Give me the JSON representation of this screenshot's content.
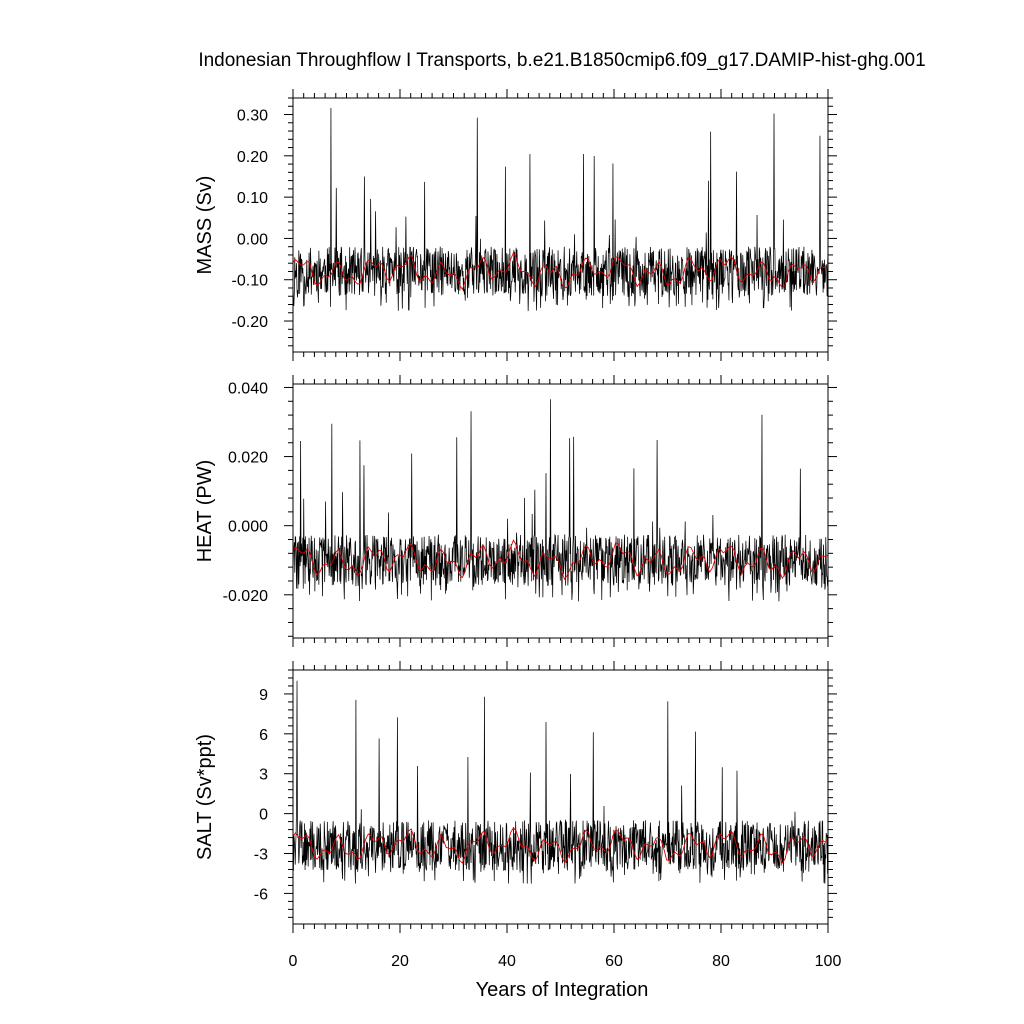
{
  "chart_data": {
    "type": "line",
    "title": "Indonesian Throughflow I Transports, b.e21.B1850cmip6.f09_g17.DAMIP-hist-ghg.001",
    "xlabel": "Years of Integration",
    "xlim": [
      0,
      100
    ],
    "xticks": [
      0,
      20,
      40,
      60,
      80,
      100
    ],
    "xtick_labels": [
      "0",
      "20",
      "40",
      "60",
      "80",
      "100"
    ],
    "grid": false,
    "legend": "none",
    "colors": {
      "monthly": "#000000",
      "smoothed": "#e00000"
    },
    "panels": [
      {
        "ylabel": "MASS (Sv)",
        "ylim": [
          -0.275,
          0.34
        ],
        "yticks": [
          0.3,
          0.2,
          0.1,
          0.0,
          -0.1,
          -0.2
        ],
        "ytick_labels": [
          "0.30",
          "0.20",
          "0.10",
          "0.00",
          "-0.10",
          "-0.20"
        ],
        "ref": {
          "center": -0.08,
          "amp": 0.06,
          "down": 0.08,
          "spike": 0.4,
          "spikemax": 0.32,
          "ymin": -0.27,
          "smooth_amp": 0.022,
          "seed": 11
        },
        "series": [
          {
            "role": "monthly",
            "x_start": 0,
            "x_end": 100,
            "n": 1200,
            "values": []
          },
          {
            "role": "smoothed",
            "x_start": 0,
            "x_end": 100,
            "n": 200,
            "values": []
          }
        ]
      },
      {
        "ylabel": "HEAT (PW)",
        "ylim": [
          -0.0325,
          0.041
        ],
        "yticks": [
          0.04,
          0.02,
          0.0,
          -0.02
        ],
        "ytick_labels": [
          "0.040",
          "0.020",
          "0.000",
          "-0.020"
        ],
        "ref": {
          "center": -0.01,
          "amp": 0.0075,
          "down": 0.01,
          "spike": 0.048,
          "spikemax": 0.041,
          "ymin": -0.032,
          "smooth_amp": 0.0028,
          "seed": 29
        },
        "series": [
          {
            "role": "monthly",
            "x_start": 0,
            "x_end": 100,
            "n": 1200,
            "values": []
          },
          {
            "role": "smoothed",
            "x_start": 0,
            "x_end": 100,
            "n": 200,
            "values": []
          }
        ]
      },
      {
        "ylabel": "SALT (Sv*ppt)",
        "ylim": [
          -8.3,
          10.8
        ],
        "yticks": [
          9,
          6,
          3,
          0,
          -3,
          -6
        ],
        "ytick_labels": [
          "9",
          "6",
          "3",
          "0",
          "-3",
          "-6"
        ],
        "ref": {
          "center": -2.4,
          "amp": 1.9,
          "down": 2.4,
          "spike": 12.5,
          "spikemax": 10.5,
          "ymin": -8.1,
          "smooth_amp": 0.7,
          "seed": 47
        },
        "series": [
          {
            "role": "monthly",
            "x_start": 0,
            "x_end": 100,
            "n": 1200,
            "values": []
          },
          {
            "role": "smoothed",
            "x_start": 0,
            "x_end": 100,
            "n": 200,
            "values": []
          }
        ]
      }
    ]
  }
}
